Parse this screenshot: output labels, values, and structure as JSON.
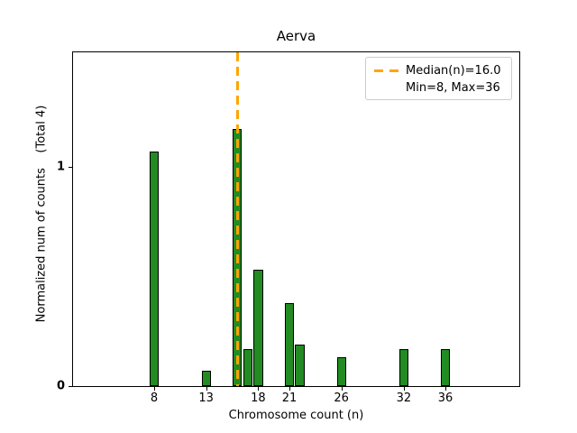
{
  "title": "Aerva",
  "chart_data": {
    "type": "bar",
    "title": "Aerva",
    "xlabel": "Chromosome count (n)",
    "ylabel": "Normalized num of counts    (Total 4)",
    "x": [
      8,
      13,
      16,
      17,
      18,
      21,
      22,
      26,
      32,
      36
    ],
    "values": [
      1.07,
      0.07,
      1.17,
      0.17,
      0.53,
      0.38,
      0.19,
      0.13,
      0.17,
      0.17
    ],
    "bar_width_units": 0.9,
    "xticks": [
      8,
      13,
      18,
      21,
      26,
      32,
      36
    ],
    "yticks": [
      0,
      1
    ],
    "xlim": [
      0.2,
      43.1
    ],
    "ylim": [
      0,
      1.52
    ],
    "grid": false,
    "legend_position": "upper right",
    "colors": {
      "bar_fill": "#228B22",
      "bar_edge": "#000000",
      "median_line": "#FFA500",
      "legend_border": "#cccccc"
    },
    "median_line": {
      "x": 16.0,
      "style": "dashed",
      "label": "Median(n)=16.0"
    },
    "legend": {
      "entries": [
        {
          "label": "Median(n)=16.0",
          "sample": "orange-dashed-line"
        },
        {
          "label": "Min=8, Max=36",
          "sample": "none"
        }
      ]
    },
    "stats": {
      "median": 16.0,
      "min": 8,
      "max": 36,
      "total": 4
    }
  }
}
